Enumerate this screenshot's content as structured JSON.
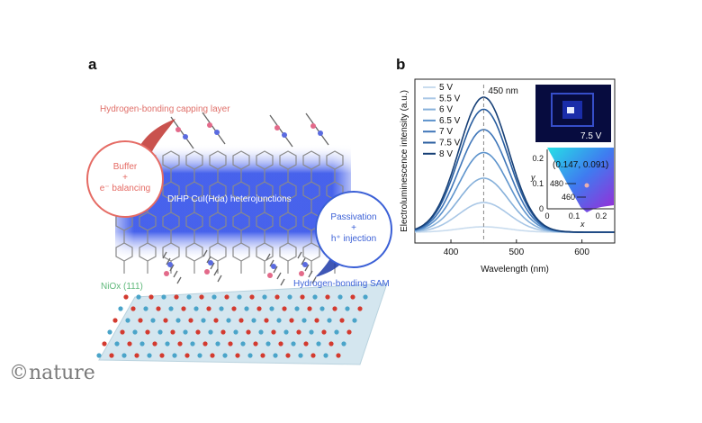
{
  "panel_a": {
    "label": "a",
    "capping_layer": "Hydrogen-bonding capping layer",
    "buffer_title": "Buffer",
    "buffer_plus": "+",
    "buffer_sub": "e⁻ balancing",
    "heterojunction": "DIHP CuI(Hda) heterojunctions",
    "passivation_title": "Passivation",
    "passivation_plus": "+",
    "passivation_sub": "h⁺ injection",
    "nio_label": "NiOx (111)",
    "sam_label": "Hydrogen-bonding SAM"
  },
  "panel_b": {
    "label": "b"
  },
  "brand": "©nature",
  "colors": {
    "pink": "#e0706a",
    "blue": "#3d63d9",
    "green": "#5fb87a",
    "band": "#2747e8"
  },
  "chart_data": {
    "type": "line",
    "xlabel": "Wavelength (nm)",
    "ylabel": "Electroluminescence intensity (a.u.)",
    "xlim": [
      345,
      650
    ],
    "xticks": [
      400,
      500,
      600
    ],
    "grid": false,
    "legend_position": "top-left",
    "peak_annotation": "450 nm",
    "peak_x": 450,
    "peak_width_nm": 38,
    "series": [
      {
        "name": "5 V",
        "peak": 0.04,
        "color": "#c9dcee"
      },
      {
        "name": "5.5 V",
        "peak": 0.22,
        "color": "#a9c7e6"
      },
      {
        "name": "6 V",
        "peak": 0.4,
        "color": "#86b0da"
      },
      {
        "name": "6.5 V",
        "peak": 0.59,
        "color": "#5d93cc"
      },
      {
        "name": "7 V",
        "peak": 0.76,
        "color": "#3f76b9"
      },
      {
        "name": "7.5 V",
        "peak": 0.91,
        "color": "#285d9f"
      },
      {
        "name": "8 V",
        "peak": 1.0,
        "color": "#163f76"
      }
    ],
    "inset_photo_label": "7.5 V",
    "inset_cie": {
      "coordinate_label": "(0.147, 0.091)",
      "point": [
        0.147,
        0.091
      ],
      "xlabel": "x",
      "ylabel": "y",
      "xticks": [
        0,
        0.1,
        0.2
      ],
      "yticks": [
        0,
        0.1,
        0.2
      ],
      "wavelength_labels": [
        "480",
        "460"
      ]
    }
  }
}
